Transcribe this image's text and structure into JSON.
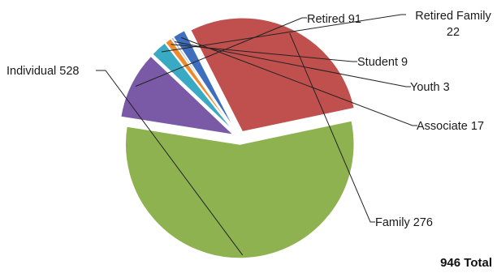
{
  "chart_data": {
    "type": "pie",
    "title": "",
    "slices": [
      {
        "name": "Retired",
        "value": 91,
        "label": "Retired 91",
        "color": "#7a5aa6"
      },
      {
        "name": "Retired Family",
        "value": 22,
        "label_lines": [
          "Retired Family",
          "22"
        ],
        "color": "#3aa9c4"
      },
      {
        "name": "Student",
        "value": 9,
        "label": "Student 9",
        "color": "#ee8a2d"
      },
      {
        "name": "Youth",
        "value": 3,
        "label": "Youth 3",
        "color": "#9ab7dd"
      },
      {
        "name": "Associate",
        "value": 17,
        "label": "Associate 17",
        "color": "#3e6fbf"
      },
      {
        "name": "Family",
        "value": 276,
        "label": "Family 276",
        "color": "#c0504d"
      },
      {
        "name": "Individual",
        "value": 528,
        "label": "Individual 528",
        "color": "#8fb250"
      }
    ],
    "total_label": "946 Total",
    "legend": "none"
  }
}
